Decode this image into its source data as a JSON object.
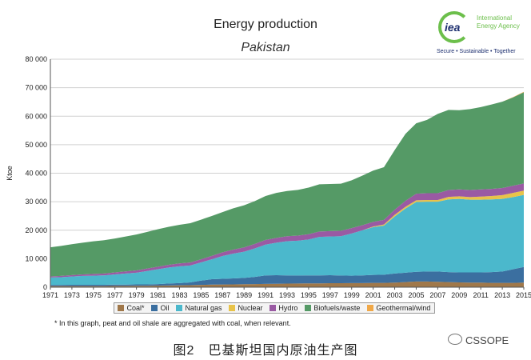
{
  "title": "Energy production",
  "subtitle": "Pakistan",
  "logo": {
    "mark": "iea",
    "name_line1": "International",
    "name_line2": "Energy Agency",
    "tagline": "Secure • Sustainable • Together"
  },
  "footnote": "* In this graph, peat and oil shale are aggregated with coal, when relevant.",
  "caption": "图2　巴基斯坦国内原油生产图",
  "watermark": "CSSOPE",
  "colors": {
    "coal": "#a0784a",
    "oil": "#3b6fa0",
    "natural_gas": "#4bb8cc",
    "nuclear": "#e8c34a",
    "hydro": "#9a5aa3",
    "biofuels": "#559a66",
    "geothermal": "#f0a848"
  },
  "chart_data": {
    "type": "area",
    "stacked": true,
    "title": "Energy production",
    "subtitle": "Pakistan",
    "xlabel": "",
    "ylabel": "Ktoe",
    "ylim": [
      0,
      80000
    ],
    "yticks": [
      "0",
      "10 000",
      "20 000",
      "30 000",
      "40 000",
      "50 000",
      "60 000",
      "70 000",
      "80 000"
    ],
    "xticks": [
      "1971",
      "1973",
      "1975",
      "1977",
      "1979",
      "1981",
      "1983",
      "1985",
      "1987",
      "1989",
      "1991",
      "1993",
      "1995",
      "1997",
      "1999",
      "2001",
      "2003",
      "2005",
      "2007",
      "2009",
      "2011",
      "2013",
      "2015"
    ],
    "grid": true,
    "legend_position": "bottom",
    "x": [
      1971,
      1972,
      1973,
      1974,
      1975,
      1976,
      1977,
      1978,
      1979,
      1980,
      1981,
      1982,
      1983,
      1984,
      1985,
      1986,
      1987,
      1988,
      1989,
      1990,
      1991,
      1992,
      1993,
      1994,
      1995,
      1996,
      1997,
      1998,
      1999,
      2000,
      2001,
      2002,
      2003,
      2004,
      2005,
      2006,
      2007,
      2008,
      2009,
      2010,
      2011,
      2012,
      2013,
      2014,
      2015
    ],
    "series": [
      {
        "name": "Coal*",
        "key": "coal",
        "values": [
          400,
          400,
          400,
          400,
          400,
          400,
          450,
          450,
          500,
          500,
          550,
          600,
          650,
          700,
          800,
          900,
          950,
          1000,
          1050,
          1100,
          1150,
          1200,
          1250,
          1300,
          1350,
          1350,
          1400,
          1400,
          1450,
          1450,
          1500,
          1500,
          1600,
          1800,
          2000,
          2000,
          1900,
          1800,
          1700,
          1600,
          1600,
          1500,
          1500,
          1500,
          1600
        ]
      },
      {
        "name": "Oil",
        "key": "oil",
        "values": [
          400,
          400,
          450,
          450,
          450,
          450,
          450,
          450,
          500,
          500,
          550,
          700,
          800,
          1000,
          1500,
          1900,
          2000,
          2100,
          2200,
          2500,
          3000,
          3000,
          2900,
          2800,
          2800,
          2800,
          2800,
          2700,
          2600,
          2700,
          2800,
          2900,
          3200,
          3300,
          3400,
          3500,
          3600,
          3500,
          3500,
          3600,
          3600,
          3800,
          4000,
          4800,
          5500
        ]
      },
      {
        "name": "Natural gas",
        "key": "natural_gas",
        "values": [
          2600,
          2700,
          2900,
          3100,
          3200,
          3300,
          3600,
          3900,
          4100,
          4700,
          5200,
          5600,
          5900,
          5900,
          6400,
          7000,
          8000,
          8700,
          9200,
          10000,
          10800,
          11400,
          12000,
          12200,
          12600,
          13500,
          13600,
          13800,
          14800,
          15800,
          16800,
          17200,
          20000,
          22500,
          24500,
          24500,
          24500,
          25500,
          25800,
          25500,
          25500,
          25500,
          25500,
          25300,
          25300
        ]
      },
      {
        "name": "Nuclear",
        "key": "nuclear",
        "values": [
          0,
          0,
          0,
          0,
          0,
          0,
          0,
          0,
          0,
          0,
          0,
          0,
          0,
          0,
          0,
          0,
          0,
          0,
          0,
          0,
          0,
          0,
          0,
          0,
          0,
          0,
          0,
          0,
          0,
          0,
          200,
          400,
          600,
          600,
          600,
          600,
          600,
          900,
          900,
          900,
          1100,
          1200,
          1300,
          1500,
          1500
        ]
      },
      {
        "name": "Hydro",
        "key": "hydro",
        "values": [
          400,
          450,
          500,
          550,
          600,
          650,
          700,
          750,
          800,
          850,
          900,
          950,
          1000,
          1050,
          1100,
          1200,
          1300,
          1400,
          1500,
          1600,
          1650,
          1700,
          1750,
          1800,
          1850,
          1900,
          1900,
          1900,
          1900,
          1800,
          1600,
          1600,
          1800,
          2100,
          2300,
          2400,
          2400,
          2400,
          2400,
          2500,
          2500,
          2500,
          2500,
          2500,
          2500
        ]
      },
      {
        "name": "Biofuels/waste",
        "key": "biofuels",
        "values": [
          10200,
          10550,
          10850,
          11100,
          11450,
          11700,
          11900,
          12250,
          12600,
          12850,
          13150,
          13350,
          13550,
          13800,
          13900,
          14000,
          14100,
          14500,
          14800,
          15000,
          15400,
          15800,
          15850,
          16050,
          16350,
          16550,
          16500,
          16500,
          16750,
          17400,
          18000,
          18500,
          20900,
          23500,
          24700,
          25700,
          27800,
          28100,
          27800,
          28400,
          28900,
          29600,
          30300,
          31000,
          32000
        ]
      },
      {
        "name": "Geothermal/wind",
        "key": "geothermal",
        "values": [
          0,
          0,
          0,
          0,
          0,
          0,
          0,
          0,
          0,
          0,
          0,
          0,
          0,
          0,
          0,
          0,
          0,
          0,
          0,
          0,
          0,
          0,
          0,
          0,
          0,
          0,
          0,
          0,
          0,
          0,
          0,
          0,
          0,
          0,
          0,
          0,
          0,
          0,
          0,
          0,
          0,
          0,
          0,
          100,
          150
        ]
      }
    ]
  }
}
